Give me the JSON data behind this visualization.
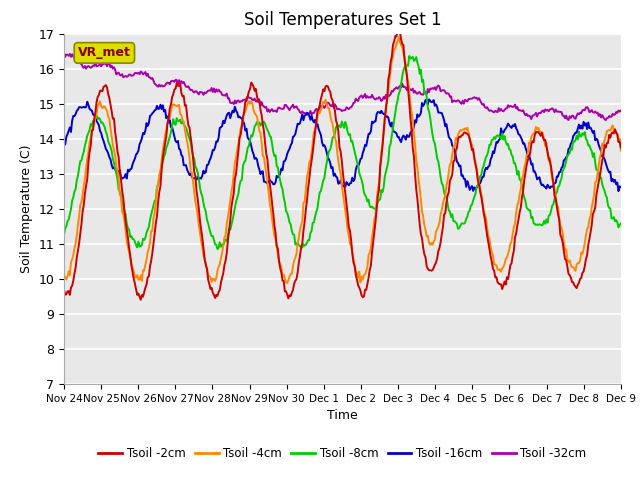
{
  "title": "Soil Temperatures Set 1",
  "xlabel": "Time",
  "ylabel": "Soil Temperature (C)",
  "ylim": [
    7.0,
    17.0
  ],
  "yticks": [
    7.0,
    8.0,
    9.0,
    10.0,
    11.0,
    12.0,
    13.0,
    14.0,
    15.0,
    16.0,
    17.0
  ],
  "xtick_labels": [
    "Nov 24",
    "Nov 25",
    "Nov 26",
    "Nov 27",
    "Nov 28",
    "Nov 29",
    "Nov 30",
    "Dec 1",
    "Dec 2",
    "Dec 3",
    "Dec 4",
    "Dec 5",
    "Dec 6",
    "Dec 7",
    "Dec 8",
    "Dec 9"
  ],
  "legend_labels": [
    "Tsoil -2cm",
    "Tsoil -4cm",
    "Tsoil -8cm",
    "Tsoil -16cm",
    "Tsoil -32cm"
  ],
  "colors": {
    "red": "#cc0000",
    "orange": "#ff8800",
    "green": "#00cc00",
    "blue": "#0000cc",
    "purple": "#aa00aa"
  },
  "annotation_text": "VR_met",
  "annotation_box_color": "#dddd00",
  "annotation_text_color": "#880000",
  "plot_bg_color": "#e8e8e8",
  "grid_color": "#ffffff",
  "n_points": 480
}
